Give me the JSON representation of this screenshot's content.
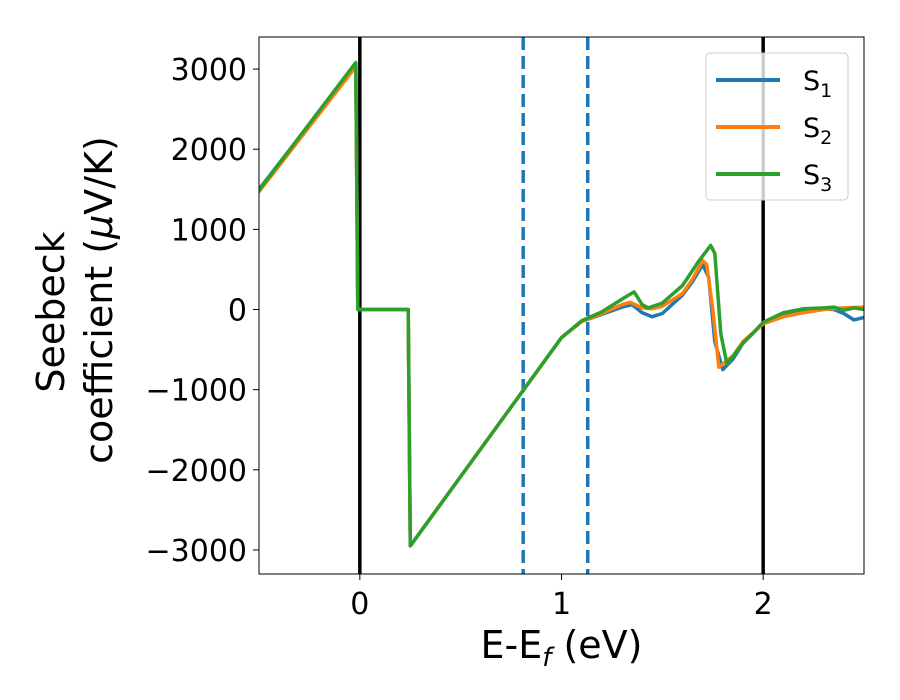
{
  "chart_data": {
    "type": "line",
    "xlabel": "E-E",
    "xlabel_sub": "f",
    "xlabel_unit": " (eV)",
    "ylabel_line1": "Seebeck",
    "ylabel_line2": "coefficient  (",
    "ylabel_mu": "μ",
    "ylabel_unit": "V/K)",
    "xlim": [
      -0.5,
      2.5
    ],
    "ylim": [
      -3300,
      3400
    ],
    "x_ticks": [
      0,
      1,
      2
    ],
    "y_ticks": [
      3000,
      2000,
      1000,
      0,
      -1000,
      -2000,
      -3000
    ],
    "y_tick_labels": [
      "3000",
      "2000",
      "1000",
      "0",
      "−1000",
      "−2000",
      "−3000"
    ],
    "grid": false,
    "legend_position": "top-right",
    "vertical_lines": [
      {
        "x": 0,
        "style": "solid",
        "color": "#000000"
      },
      {
        "x": 2,
        "style": "solid",
        "color": "#000000"
      },
      {
        "x": 0.81,
        "style": "dashed",
        "color": "#1f77b4"
      },
      {
        "x": 1.13,
        "style": "dashed",
        "color": "#1f77b4"
      }
    ],
    "series": [
      {
        "name": "S",
        "name_sub": "1",
        "color": "#1f77b4",
        "points": [
          [
            -0.5,
            1500
          ],
          [
            -0.02,
            3060
          ],
          [
            -0.01,
            0
          ],
          [
            0.24,
            0
          ],
          [
            0.25,
            -2950
          ],
          [
            1.0,
            -350
          ],
          [
            1.1,
            -150
          ],
          [
            1.2,
            -60
          ],
          [
            1.3,
            30
          ],
          [
            1.35,
            60
          ],
          [
            1.4,
            -40
          ],
          [
            1.45,
            -90
          ],
          [
            1.5,
            -50
          ],
          [
            1.6,
            180
          ],
          [
            1.65,
            350
          ],
          [
            1.7,
            560
          ],
          [
            1.73,
            400
          ],
          [
            1.76,
            -400
          ],
          [
            1.8,
            -750
          ],
          [
            1.85,
            -620
          ],
          [
            1.9,
            -420
          ],
          [
            2.0,
            -170
          ],
          [
            2.1,
            -80
          ],
          [
            2.2,
            -30
          ],
          [
            2.3,
            10
          ],
          [
            2.35,
            0
          ],
          [
            2.4,
            -50
          ],
          [
            2.45,
            -130
          ],
          [
            2.5,
            -100
          ]
        ]
      },
      {
        "name": "S",
        "name_sub": "2",
        "color": "#ff7f0e",
        "points": [
          [
            -0.5,
            1470
          ],
          [
            -0.02,
            3030
          ],
          [
            -0.01,
            0
          ],
          [
            0.24,
            0
          ],
          [
            0.25,
            -2950
          ],
          [
            1.0,
            -350
          ],
          [
            1.1,
            -150
          ],
          [
            1.2,
            -50
          ],
          [
            1.3,
            60
          ],
          [
            1.34,
            90
          ],
          [
            1.4,
            20
          ],
          [
            1.45,
            10
          ],
          [
            1.5,
            40
          ],
          [
            1.6,
            200
          ],
          [
            1.65,
            380
          ],
          [
            1.7,
            610
          ],
          [
            1.72,
            560
          ],
          [
            1.75,
            0
          ],
          [
            1.78,
            -720
          ],
          [
            1.85,
            -580
          ],
          [
            1.9,
            -400
          ],
          [
            2.0,
            -180
          ],
          [
            2.1,
            -90
          ],
          [
            2.2,
            -40
          ],
          [
            2.3,
            0
          ],
          [
            2.4,
            20
          ],
          [
            2.5,
            30
          ]
        ]
      },
      {
        "name": "S",
        "name_sub": "3",
        "color": "#2ca02c",
        "points": [
          [
            -0.5,
            1490
          ],
          [
            -0.02,
            3080
          ],
          [
            -0.01,
            0
          ],
          [
            0.24,
            0
          ],
          [
            0.25,
            -2950
          ],
          [
            1.0,
            -350
          ],
          [
            1.1,
            -140
          ],
          [
            1.2,
            -30
          ],
          [
            1.3,
            130
          ],
          [
            1.36,
            220
          ],
          [
            1.4,
            60
          ],
          [
            1.43,
            20
          ],
          [
            1.5,
            80
          ],
          [
            1.6,
            300
          ],
          [
            1.68,
            600
          ],
          [
            1.74,
            800
          ],
          [
            1.76,
            700
          ],
          [
            1.79,
            -300
          ],
          [
            1.82,
            -680
          ],
          [
            1.9,
            -420
          ],
          [
            2.0,
            -160
          ],
          [
            2.1,
            -40
          ],
          [
            2.2,
            10
          ],
          [
            2.3,
            20
          ],
          [
            2.35,
            30
          ],
          [
            2.4,
            -10
          ],
          [
            2.45,
            20
          ],
          [
            2.5,
            0
          ]
        ]
      }
    ]
  }
}
